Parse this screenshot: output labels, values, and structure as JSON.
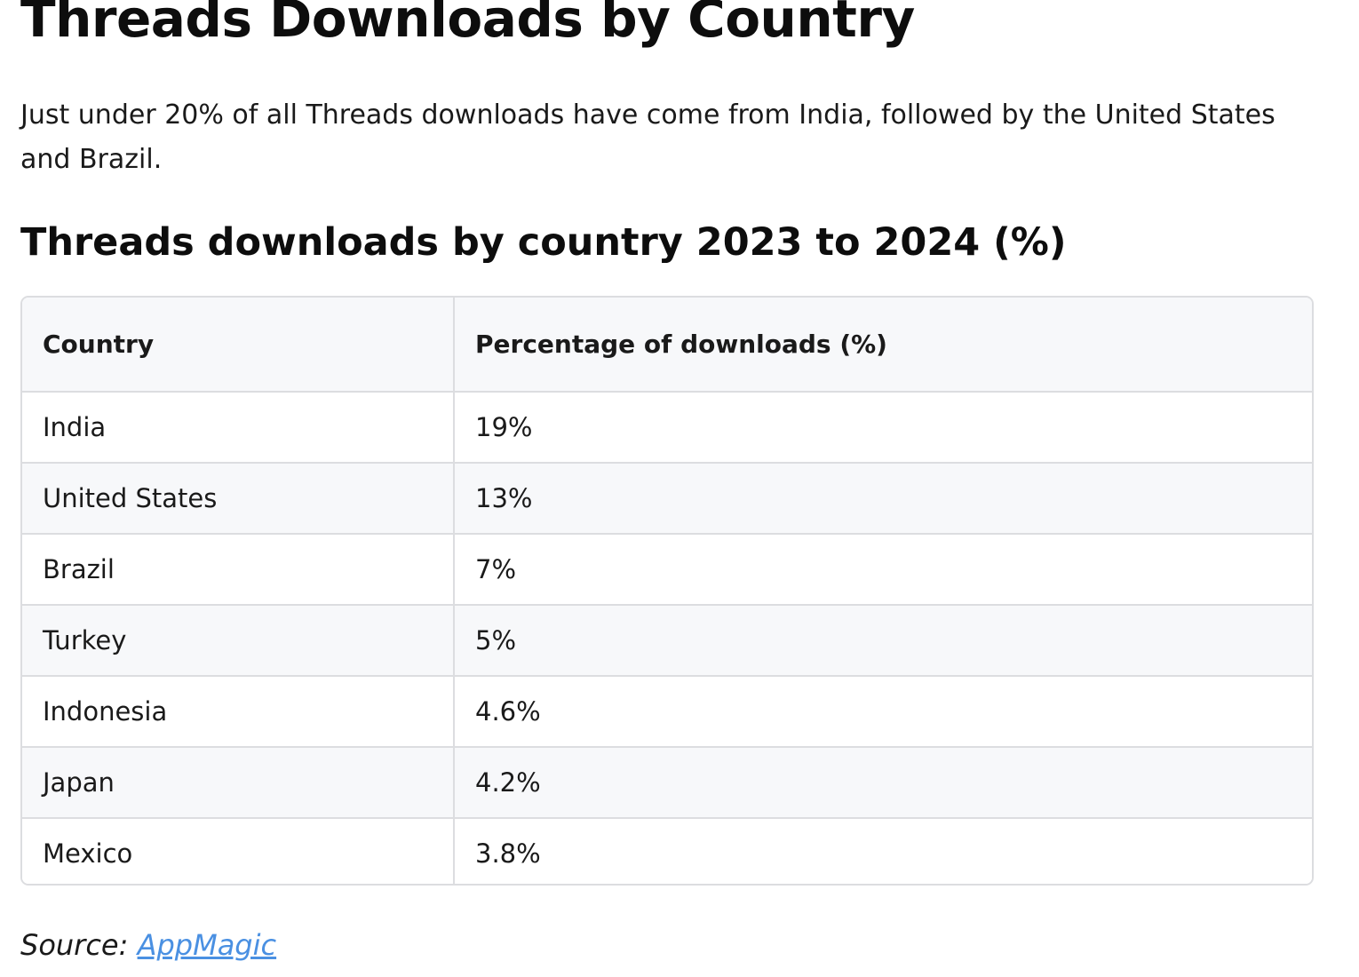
{
  "header": {
    "title": "Threads Downloads by Country",
    "intro": "Just under 20% of all Threads downloads have come from India, followed by the United States and Brazil."
  },
  "table_section": {
    "title": "Threads downloads by country 2023 to 2024 (%)",
    "columns": [
      "Country",
      "Percentage of downloads (%)"
    ],
    "rows": [
      {
        "country": "India",
        "percentage": "19%"
      },
      {
        "country": "United States",
        "percentage": "13%"
      },
      {
        "country": "Brazil",
        "percentage": "7%"
      },
      {
        "country": "Turkey",
        "percentage": "5%"
      },
      {
        "country": "Indonesia",
        "percentage": "4.6%"
      },
      {
        "country": "Japan",
        "percentage": "4.2%"
      },
      {
        "country": "Mexico",
        "percentage": "3.8%"
      }
    ]
  },
  "source": {
    "label": "Source:",
    "link_text": "AppMagic"
  },
  "colors": {
    "link": "#4a90e2",
    "border": "#dcdde0",
    "stripe": "#f7f8fa"
  }
}
